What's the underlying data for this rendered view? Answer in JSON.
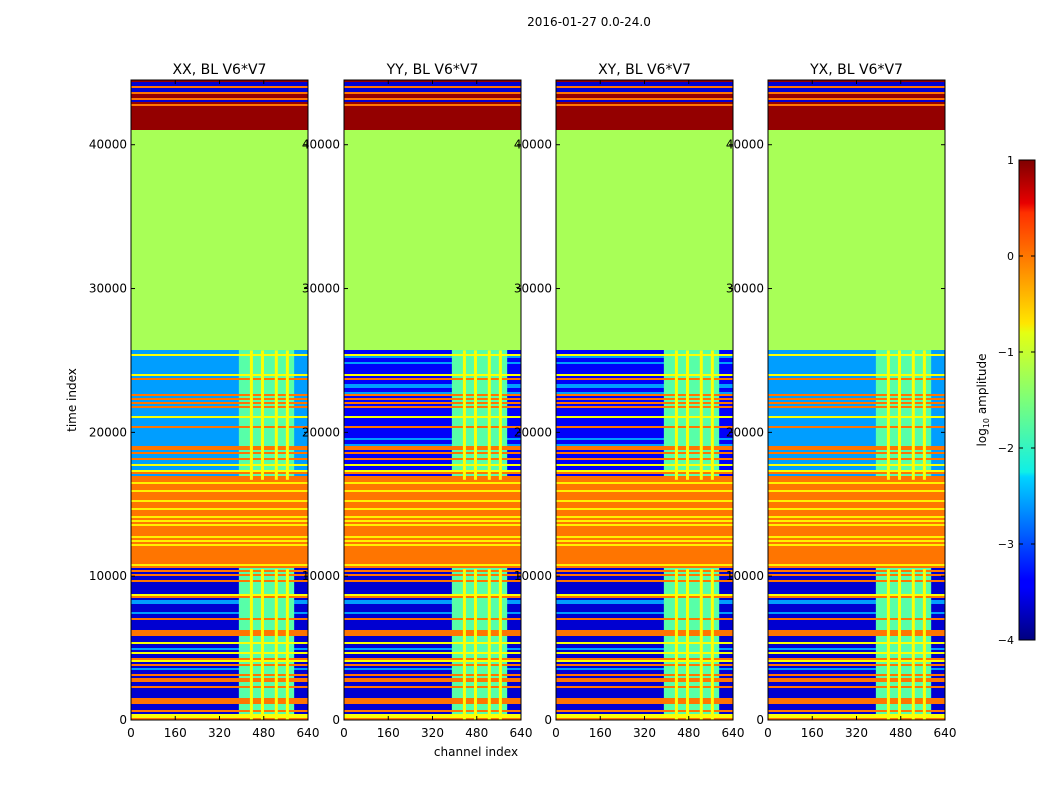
{
  "suptitle": "2016-01-27 0.0-24.0",
  "chart_data": {
    "type": "heatmap",
    "xlabel": "channel index",
    "ylabel": "time index",
    "xlim": [
      0,
      640
    ],
    "ylim": [
      0,
      44500
    ],
    "xticks": [
      0,
      160,
      320,
      480,
      640
    ],
    "yticks": [
      0,
      10000,
      20000,
      30000,
      40000
    ],
    "colorbar": {
      "label": "log",
      "label_sub": "10",
      "label_rest": " amplitude",
      "range": [
        -4,
        1
      ],
      "ticks": [
        1,
        0,
        -1,
        -2,
        -3,
        -4
      ],
      "tick_labels": [
        "1",
        "0",
        "−1",
        "−2",
        "−3",
        "−4"
      ],
      "colormap": "jet"
    },
    "panels": [
      {
        "title": "XX, BL V6*V7",
        "low_noise": false
      },
      {
        "title": "YY, BL V6*V7",
        "low_noise": true
      },
      {
        "title": "XY, BL V6*V7",
        "low_noise": true
      },
      {
        "title": "YX, BL V6*V7",
        "low_noise": false
      }
    ],
    "flagged_region": {
      "time_range": [
        25700,
        41000
      ],
      "value": -1.3
    },
    "rfi_channel_range": [
      390,
      590
    ],
    "rfi_time_ranges": [
      [
        0,
        10500
      ],
      [
        16700,
        25700
      ]
    ]
  }
}
